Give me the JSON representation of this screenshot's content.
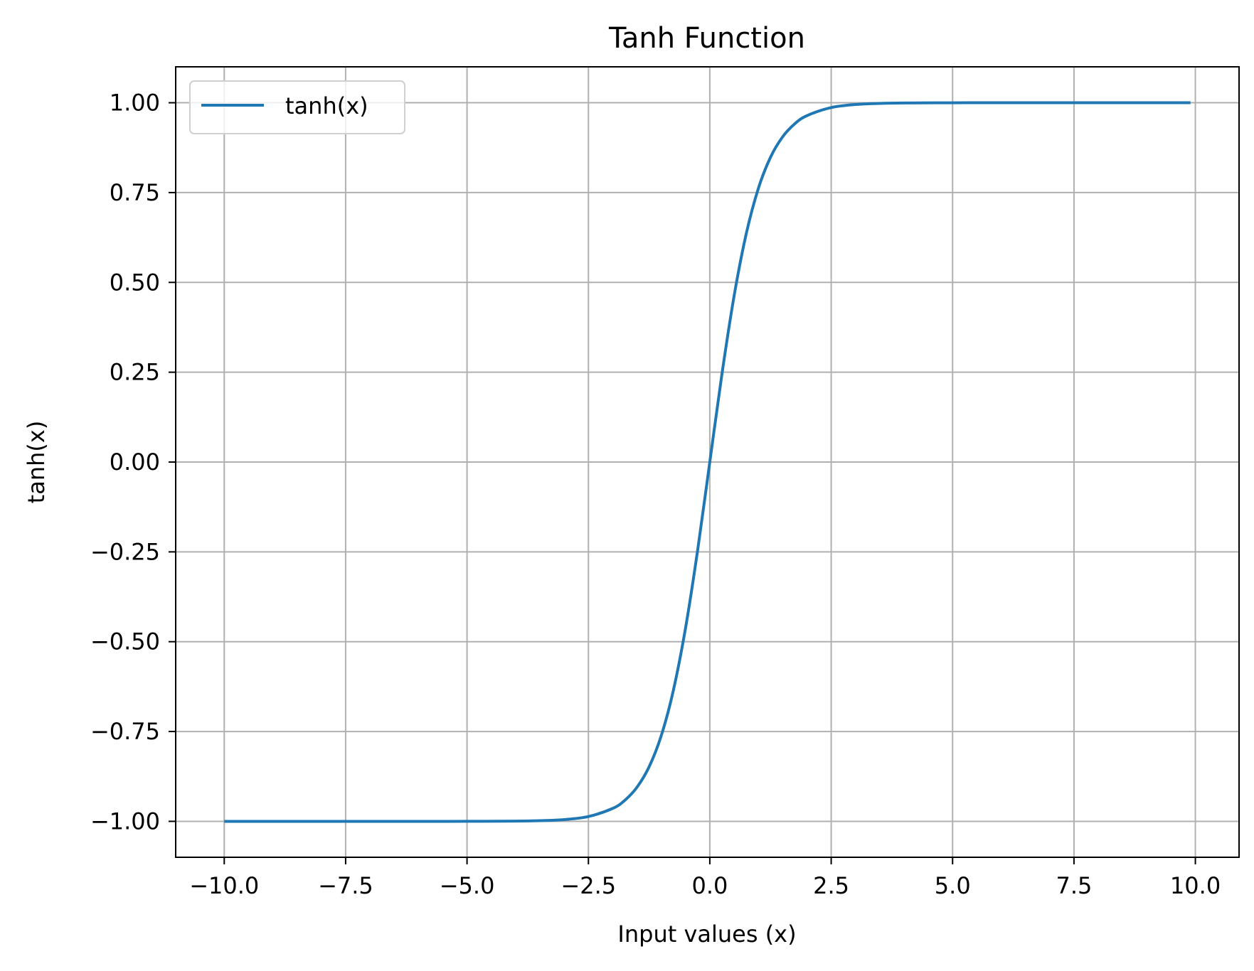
{
  "chart_data": {
    "type": "line",
    "title": "Tanh Function",
    "xlabel": "Input values (x)",
    "ylabel": "tanh(x)",
    "xlim": [
      -11.0,
      10.9
    ],
    "ylim": [
      -1.1,
      1.1
    ],
    "grid": true,
    "legend_position": "upper-left",
    "x_ticks": [
      -10.0,
      -7.5,
      -5.0,
      -2.5,
      0.0,
      2.5,
      5.0,
      7.5,
      10.0
    ],
    "x_tick_labels": [
      "−10.0",
      "−7.5",
      "−5.0",
      "−2.5",
      "0.0",
      "2.5",
      "5.0",
      "7.5",
      "10.0"
    ],
    "y_ticks": [
      -1.0,
      -0.75,
      -0.5,
      -0.25,
      0.0,
      0.25,
      0.5,
      0.75,
      1.0
    ],
    "y_tick_labels": [
      "−1.00",
      "−0.75",
      "−0.50",
      "−0.25",
      "0.00",
      "0.25",
      "0.50",
      "0.75",
      "1.00"
    ],
    "series": [
      {
        "name": "tanh(x)",
        "color": "#1f77b4",
        "x": [
          -10.0,
          -8.0,
          -6.0,
          -5.0,
          -4.0,
          -3.5,
          -3.0,
          -2.5,
          -2.0,
          -1.75,
          -1.5,
          -1.25,
          -1.0,
          -0.75,
          -0.5,
          -0.25,
          0.0,
          0.25,
          0.5,
          0.75,
          1.0,
          1.25,
          1.5,
          1.75,
          2.0,
          2.5,
          3.0,
          3.5,
          4.0,
          5.0,
          6.0,
          8.0,
          9.9
        ],
        "y": [
          -1.0,
          -1.0,
          -1.0,
          -0.9999,
          -0.9993,
          -0.9982,
          -0.9951,
          -0.9866,
          -0.964,
          -0.9414,
          -0.9051,
          -0.8483,
          -0.7616,
          -0.6351,
          -0.4621,
          -0.2449,
          0.0,
          0.2449,
          0.4621,
          0.6351,
          0.7616,
          0.8483,
          0.9051,
          0.9414,
          0.964,
          0.9866,
          0.9951,
          0.9982,
          0.9993,
          0.9999,
          1.0,
          1.0,
          1.0
        ]
      }
    ]
  }
}
